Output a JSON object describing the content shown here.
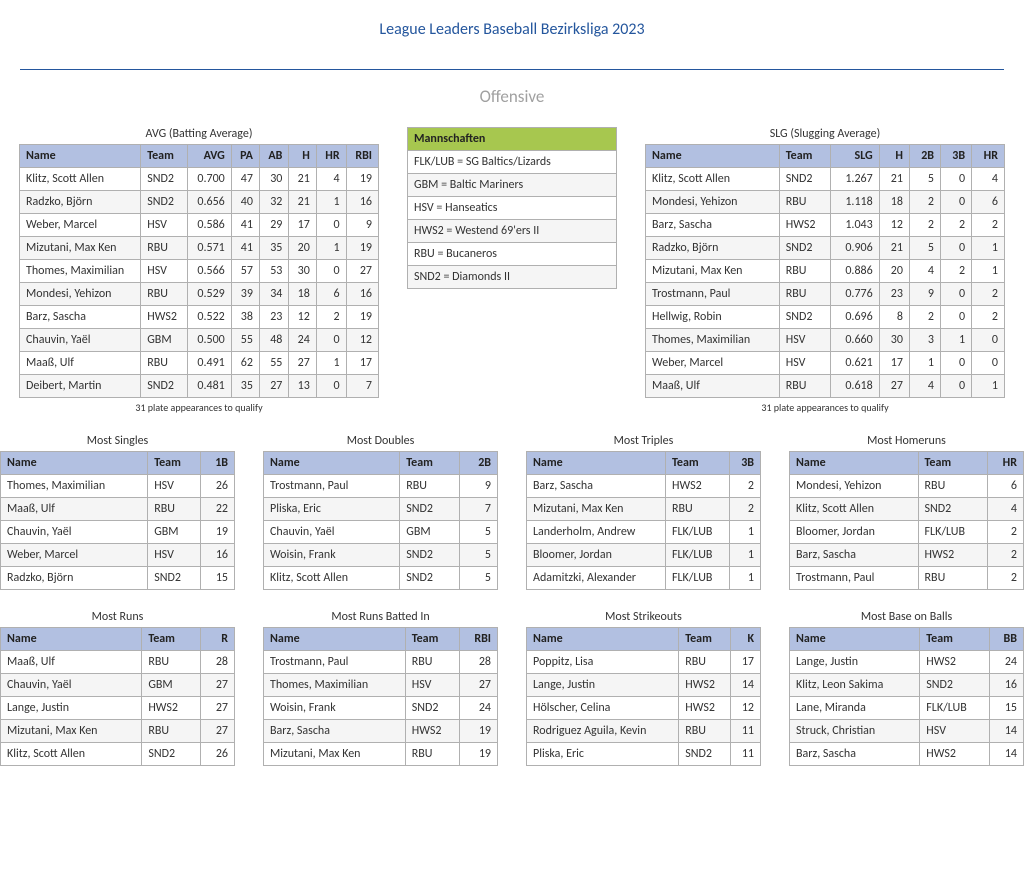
{
  "page_title": "League Leaders Baseball Bezirksliga 2023",
  "section": "Offensive",
  "colors": {
    "title": "#24569d",
    "section": "#a0a0a0",
    "header_blue": "#b2c0e1",
    "header_green": "#a7c74f",
    "row_alt": "#f5f5f5",
    "border": "#b0b0b0"
  },
  "footnote": "31 plate appearances to qualify",
  "avg": {
    "title": "AVG (Batting Average)",
    "headers": [
      "Name",
      "Team",
      "AVG",
      "PA",
      "AB",
      "H",
      "HR",
      "RBI"
    ],
    "rows": [
      [
        "Klitz, Scott Allen",
        "SND2",
        "0.700",
        "47",
        "30",
        "21",
        "4",
        "19"
      ],
      [
        "Radzko, Björn",
        "SND2",
        "0.656",
        "40",
        "32",
        "21",
        "1",
        "16"
      ],
      [
        "Weber, Marcel",
        "HSV",
        "0.586",
        "41",
        "29",
        "17",
        "0",
        "9"
      ],
      [
        "Mizutani, Max Ken",
        "RBU",
        "0.571",
        "41",
        "35",
        "20",
        "1",
        "19"
      ],
      [
        "Thomes, Maximilian",
        "HSV",
        "0.566",
        "57",
        "53",
        "30",
        "0",
        "27"
      ],
      [
        "Mondesi, Yehizon",
        "RBU",
        "0.529",
        "39",
        "34",
        "18",
        "6",
        "16"
      ],
      [
        "Barz, Sascha",
        "HWS2",
        "0.522",
        "38",
        "23",
        "12",
        "2",
        "19"
      ],
      [
        "Chauvin, Yaël",
        "GBM",
        "0.500",
        "55",
        "48",
        "24",
        "0",
        "12"
      ],
      [
        "Maaß, Ulf",
        "RBU",
        "0.491",
        "62",
        "55",
        "27",
        "1",
        "17"
      ],
      [
        "Deibert, Martin",
        "SND2",
        "0.481",
        "35",
        "27",
        "13",
        "0",
        "7"
      ]
    ]
  },
  "teams": {
    "header": "Mannschaften",
    "rows": [
      "FLK/LUB = SG Baltics/Lizards",
      "GBM = Baltic Mariners",
      "HSV = Hanseatics",
      "HWS2 = Westend 69'ers II",
      "RBU = Bucaneros",
      "SND2 = Diamonds II"
    ]
  },
  "slg": {
    "title": "SLG (Slugging Average)",
    "headers": [
      "Name",
      "Team",
      "SLG",
      "H",
      "2B",
      "3B",
      "HR"
    ],
    "rows": [
      [
        "Klitz, Scott Allen",
        "SND2",
        "1.267",
        "21",
        "5",
        "0",
        "4"
      ],
      [
        "Mondesi, Yehizon",
        "RBU",
        "1.118",
        "18",
        "2",
        "0",
        "6"
      ],
      [
        "Barz, Sascha",
        "HWS2",
        "1.043",
        "12",
        "2",
        "2",
        "2"
      ],
      [
        "Radzko, Björn",
        "SND2",
        "0.906",
        "21",
        "5",
        "0",
        "1"
      ],
      [
        "Mizutani, Max Ken",
        "RBU",
        "0.886",
        "20",
        "4",
        "2",
        "1"
      ],
      [
        "Trostmann, Paul",
        "RBU",
        "0.776",
        "23",
        "9",
        "0",
        "2"
      ],
      [
        "Hellwig, Robin",
        "SND2",
        "0.696",
        "8",
        "2",
        "0",
        "2"
      ],
      [
        "Thomes, Maximilian",
        "HSV",
        "0.660",
        "30",
        "3",
        "1",
        "0"
      ],
      [
        "Weber, Marcel",
        "HSV",
        "0.621",
        "17",
        "1",
        "0",
        "0"
      ],
      [
        "Maaß, Ulf",
        "RBU",
        "0.618",
        "27",
        "4",
        "0",
        "1"
      ]
    ]
  },
  "row2": [
    {
      "title": "Most Singles",
      "headers": [
        "Name",
        "Team",
        "1B"
      ],
      "rows": [
        [
          "Thomes, Maximilian",
          "HSV",
          "26"
        ],
        [
          "Maaß, Ulf",
          "RBU",
          "22"
        ],
        [
          "Chauvin, Yaël",
          "GBM",
          "19"
        ],
        [
          "Weber, Marcel",
          "HSV",
          "16"
        ],
        [
          "Radzko, Björn",
          "SND2",
          "15"
        ]
      ]
    },
    {
      "title": "Most Doubles",
      "headers": [
        "Name",
        "Team",
        "2B"
      ],
      "rows": [
        [
          "Trostmann, Paul",
          "RBU",
          "9"
        ],
        [
          "Pliska, Eric",
          "SND2",
          "7"
        ],
        [
          "Chauvin, Yaël",
          "GBM",
          "5"
        ],
        [
          "Woisin, Frank",
          "SND2",
          "5"
        ],
        [
          "Klitz, Scott Allen",
          "SND2",
          "5"
        ]
      ]
    },
    {
      "title": "Most Triples",
      "headers": [
        "Name",
        "Team",
        "3B"
      ],
      "rows": [
        [
          "Barz, Sascha",
          "HWS2",
          "2"
        ],
        [
          "Mizutani, Max Ken",
          "RBU",
          "2"
        ],
        [
          "Landerholm, Andrew",
          "FLK/LUB",
          "1"
        ],
        [
          "Bloomer, Jordan",
          "FLK/LUB",
          "1"
        ],
        [
          "Adamitzki, Alexander",
          "FLK/LUB",
          "1"
        ]
      ]
    },
    {
      "title": "Most Homeruns",
      "headers": [
        "Name",
        "Team",
        "HR"
      ],
      "rows": [
        [
          "Mondesi, Yehizon",
          "RBU",
          "6"
        ],
        [
          "Klitz, Scott Allen",
          "SND2",
          "4"
        ],
        [
          "Bloomer, Jordan",
          "FLK/LUB",
          "2"
        ],
        [
          "Barz, Sascha",
          "HWS2",
          "2"
        ],
        [
          "Trostmann, Paul",
          "RBU",
          "2"
        ]
      ]
    }
  ],
  "row3": [
    {
      "title": "Most Runs",
      "headers": [
        "Name",
        "Team",
        "R"
      ],
      "rows": [
        [
          "Maaß, Ulf",
          "RBU",
          "28"
        ],
        [
          "Chauvin, Yaël",
          "GBM",
          "27"
        ],
        [
          "Lange, Justin",
          "HWS2",
          "27"
        ],
        [
          "Mizutani, Max Ken",
          "RBU",
          "27"
        ],
        [
          "Klitz, Scott Allen",
          "SND2",
          "26"
        ]
      ]
    },
    {
      "title": "Most Runs Batted In",
      "headers": [
        "Name",
        "Team",
        "RBI"
      ],
      "rows": [
        [
          "Trostmann, Paul",
          "RBU",
          "28"
        ],
        [
          "Thomes, Maximilian",
          "HSV",
          "27"
        ],
        [
          "Woisin, Frank",
          "SND2",
          "24"
        ],
        [
          "Barz, Sascha",
          "HWS2",
          "19"
        ],
        [
          "Mizutani, Max Ken",
          "RBU",
          "19"
        ]
      ]
    },
    {
      "title": "Most Strikeouts",
      "headers": [
        "Name",
        "Team",
        "K"
      ],
      "rows": [
        [
          "Poppitz, Lisa",
          "RBU",
          "17"
        ],
        [
          "Lange, Justin",
          "HWS2",
          "14"
        ],
        [
          "Hölscher, Celina",
          "HWS2",
          "12"
        ],
        [
          "Rodriguez Aguila, Kevin",
          "RBU",
          "11"
        ],
        [
          "Pliska, Eric",
          "SND2",
          "11"
        ]
      ]
    },
    {
      "title": "Most Base on Balls",
      "headers": [
        "Name",
        "Team",
        "BB"
      ],
      "rows": [
        [
          "Lange, Justin",
          "HWS2",
          "24"
        ],
        [
          "Klitz, Leon Sakima",
          "SND2",
          "16"
        ],
        [
          "Lane, Miranda",
          "FLK/LUB",
          "15"
        ],
        [
          "Struck, Christian",
          "HSV",
          "14"
        ],
        [
          "Barz, Sascha",
          "HWS2",
          "14"
        ]
      ]
    }
  ]
}
